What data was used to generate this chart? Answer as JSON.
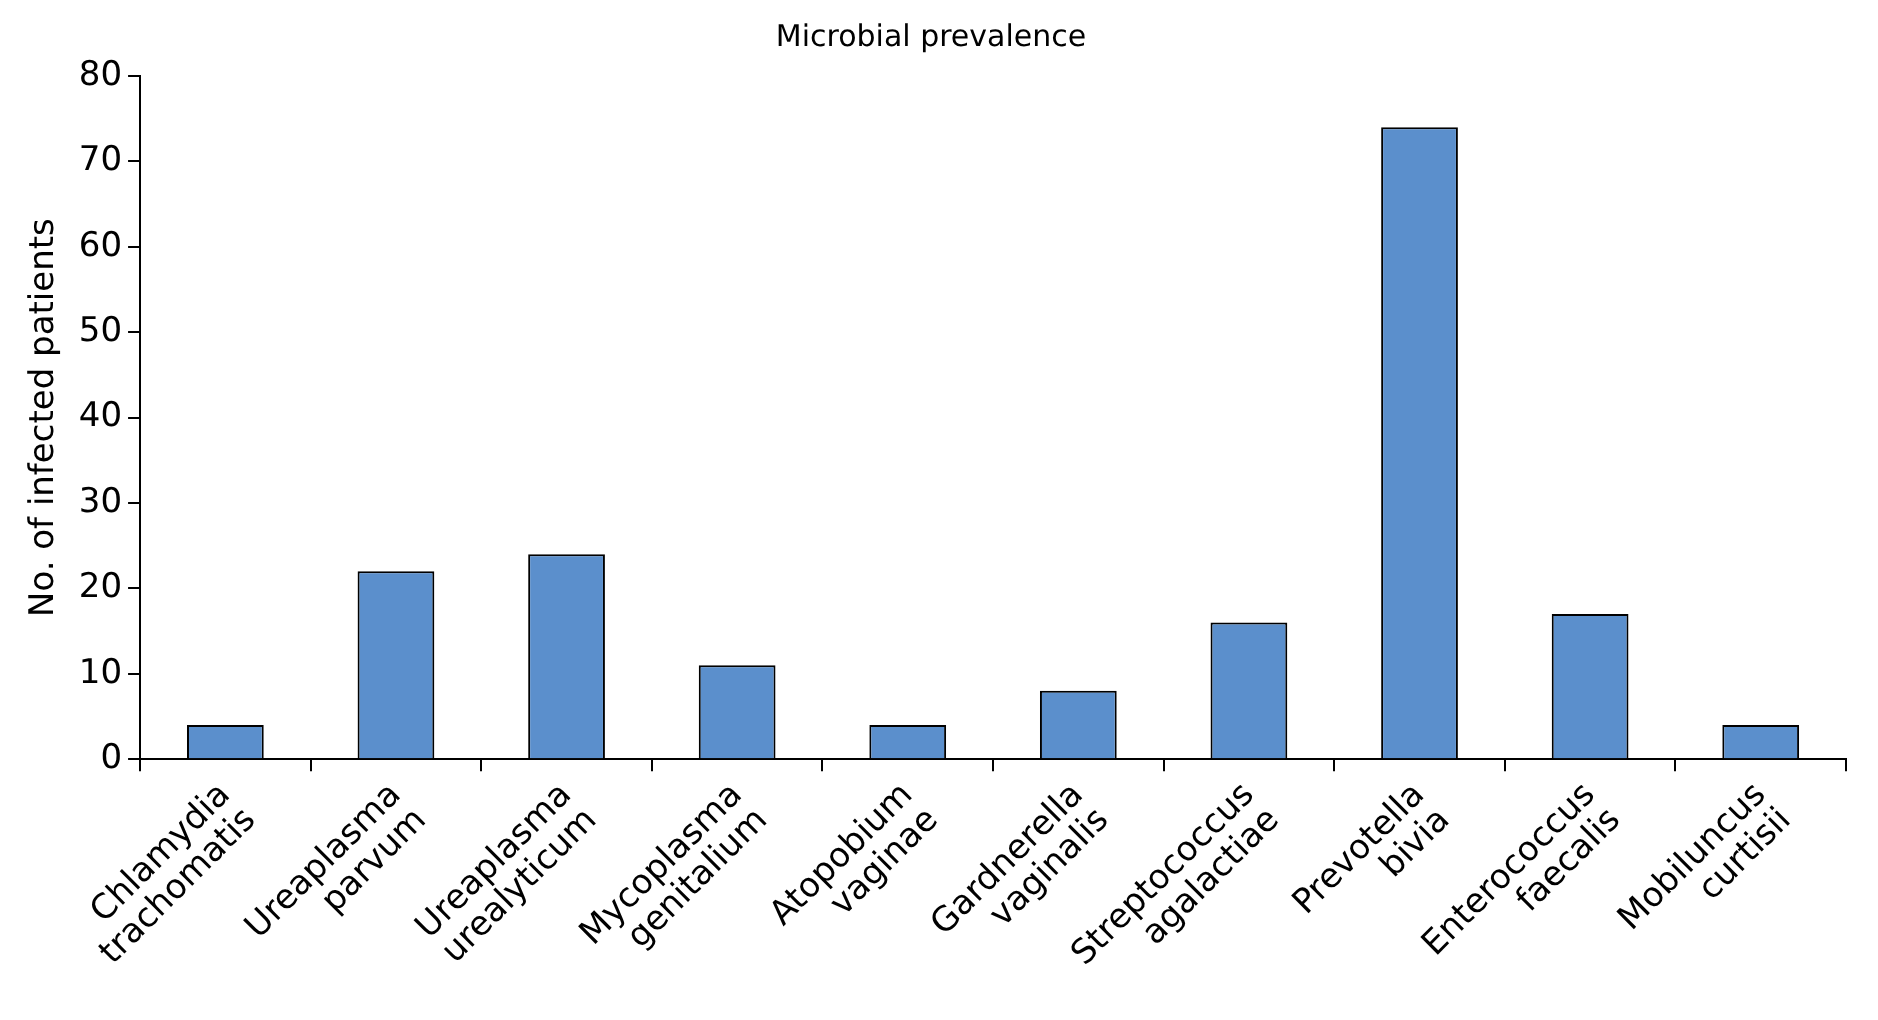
{
  "chart_data": {
    "type": "bar",
    "title": "Microbial prevalence",
    "ylabel": "No. of infected patients",
    "categories": [
      "Chlamydia trachomatis",
      "Ureaplasma parvum",
      "Ureaplasma urealyticum",
      "Mycoplasma genitalium",
      "Atopobium vaginae",
      "Gardnerella vaginalis",
      "Streptococcus agalactiae",
      "Prevotella bivia",
      "Enterococcus faecalis",
      "Mobiluncus curtisii"
    ],
    "values": [
      4,
      22,
      24,
      11,
      4,
      8,
      16,
      74,
      17,
      4
    ],
    "color": "#5b8fcc",
    "ylim": [
      0,
      80
    ],
    "yticks": [
      0,
      10,
      20,
      30,
      40,
      50,
      60,
      70,
      80
    ],
    "grid": false,
    "legend": false
  }
}
